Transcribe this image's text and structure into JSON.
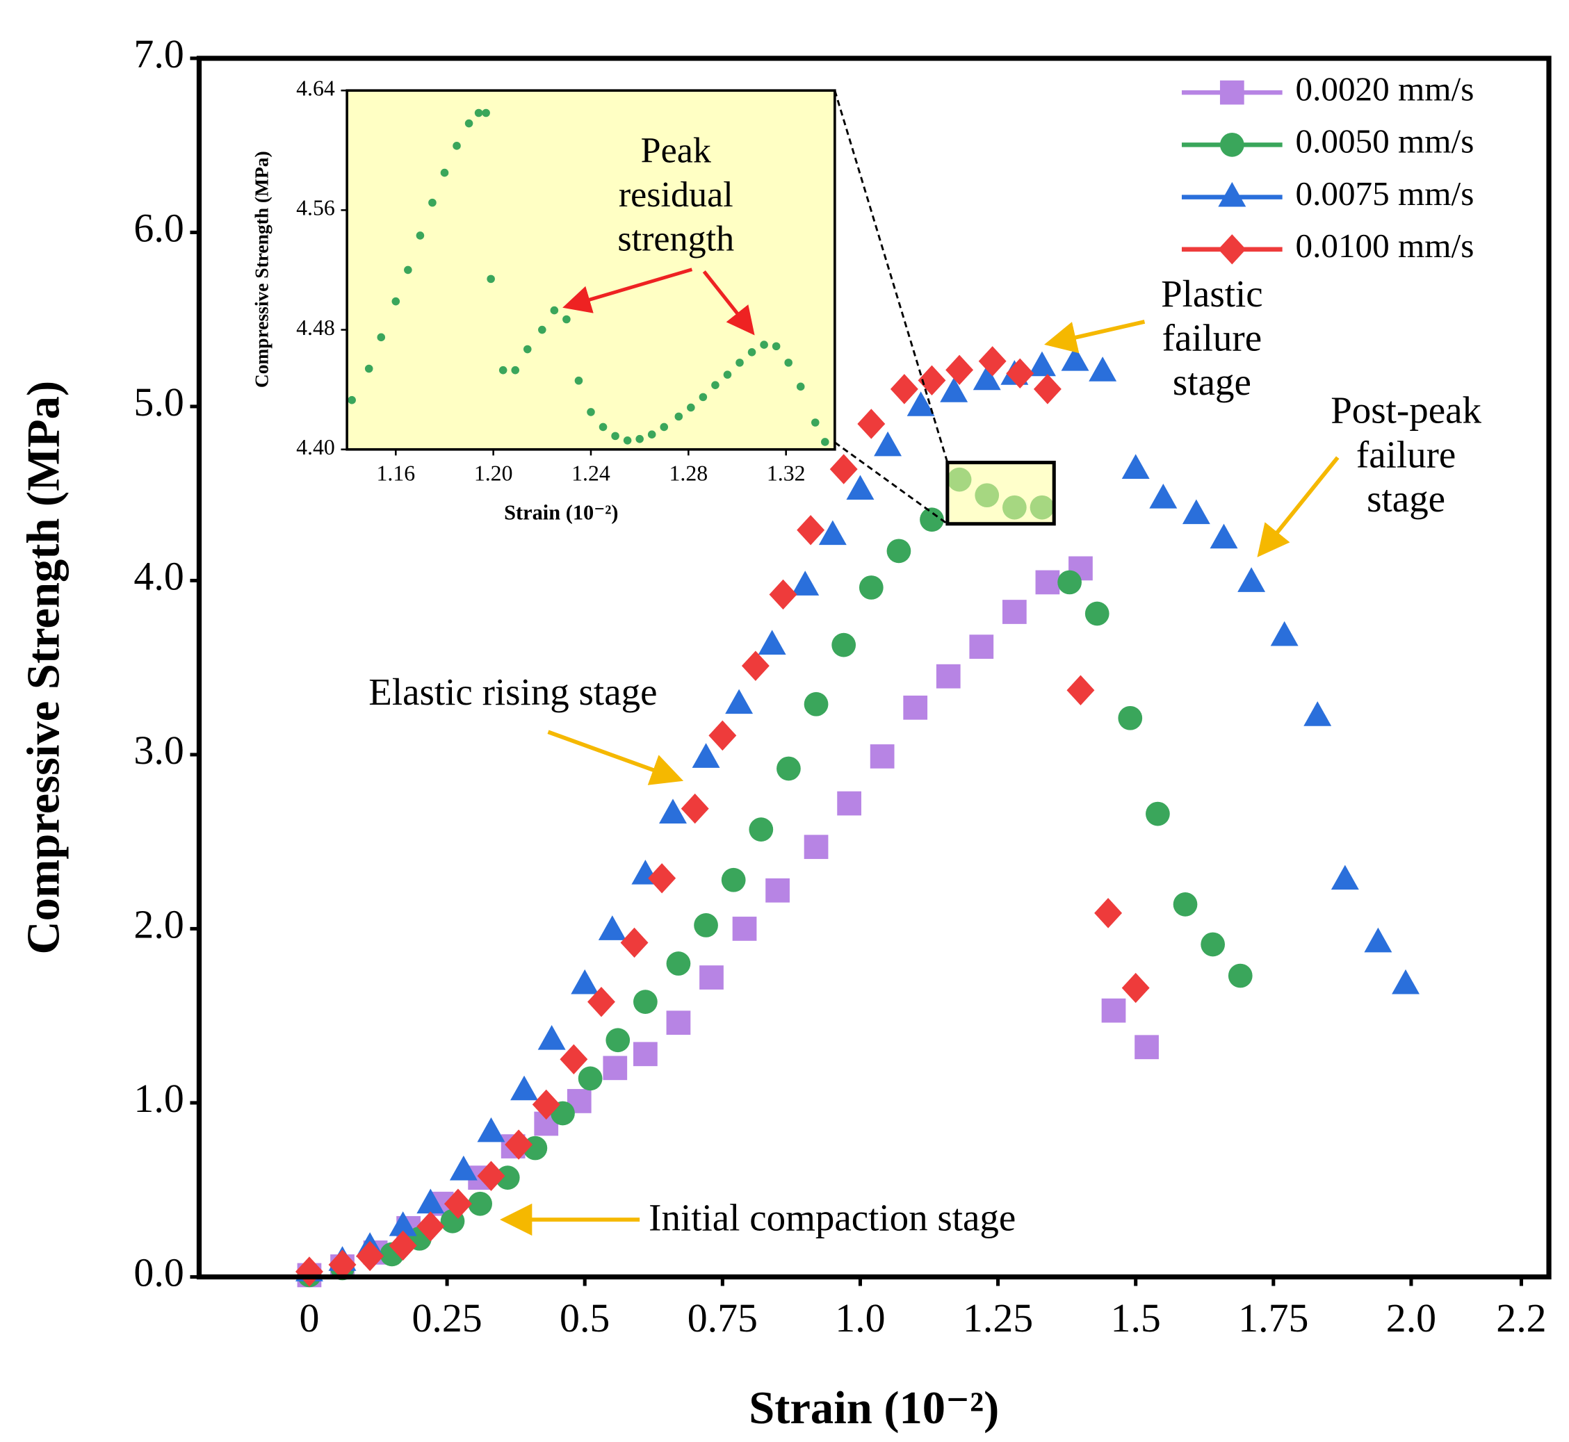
{
  "chart_data": [
    {
      "type": "line",
      "xlabel": "Strain (10⁻²)",
      "ylabel": "Compressive Strength (MPa)",
      "xlim": [
        -0.2,
        2.25
      ],
      "ylim": [
        0,
        7
      ],
      "xticks": [
        0,
        0.25,
        0.5,
        0.75,
        {
          "value": 1,
          "label": "1.0"
        },
        1.25,
        1.5,
        1.75,
        {
          "value": 2,
          "label": "2.0"
        },
        2.2
      ],
      "yticks": [
        {
          "value": 0,
          "label": "0.0"
        },
        {
          "value": 1,
          "label": "1.0"
        },
        {
          "value": 2,
          "label": "2.0"
        },
        {
          "value": 3,
          "label": "3.0"
        },
        {
          "value": 4,
          "label": "4.0"
        },
        {
          "value": 5,
          "label": "5.0"
        },
        {
          "value": 6,
          "label": "6.0"
        },
        {
          "value": 7,
          "label": "7.0"
        }
      ],
      "legend": "upper right",
      "series": [
        {
          "name": "0.0020 mm/s",
          "color": "#b784e4",
          "marker": "square",
          "x": [
            0,
            0.06,
            0.12,
            0.18,
            0.24,
            0.31,
            0.37,
            0.43,
            0.49,
            0.555,
            0.61,
            0.67,
            0.73,
            0.79,
            0.85,
            0.92,
            0.98,
            1.04,
            1.1,
            1.16,
            1.22,
            1.28,
            1.34,
            1.4,
            1.46,
            1.52
          ],
          "values": [
            0.01,
            0.06,
            0.14,
            0.28,
            0.42,
            0.57,
            0.75,
            0.88,
            1.01,
            1.2,
            1.28,
            1.46,
            1.72,
            2.0,
            2.22,
            2.47,
            2.72,
            2.99,
            3.27,
            3.45,
            3.62,
            3.82,
            3.99,
            4.07,
            1.53,
            1.32
          ]
        },
        {
          "name": "0.0050 mm/s",
          "color": "#3aa65b",
          "marker": "circle",
          "x": [
            0,
            0.06,
            0.15,
            0.2,
            0.26,
            0.31,
            0.36,
            0.41,
            0.46,
            0.51,
            0.56,
            0.61,
            0.67,
            0.72,
            0.77,
            0.82,
            0.87,
            0.92,
            0.97,
            1.02,
            1.07,
            1.13,
            1.18,
            1.23,
            1.28,
            1.33,
            1.38,
            1.43,
            1.49,
            1.54,
            1.59,
            1.64,
            1.69
          ],
          "values": [
            0.01,
            0.05,
            0.13,
            0.22,
            0.32,
            0.42,
            0.57,
            0.74,
            0.94,
            1.14,
            1.36,
            1.58,
            1.8,
            2.02,
            2.28,
            2.57,
            2.92,
            3.29,
            3.63,
            3.96,
            4.17,
            4.35,
            4.58,
            4.49,
            4.42,
            4.42,
            3.99,
            3.81,
            3.21,
            2.66,
            2.14,
            1.91,
            1.73
          ]
        },
        {
          "name": "0.0075 mm/s",
          "color": "#2a6fdb",
          "marker": "triangle",
          "x": [
            0,
            0.06,
            0.11,
            0.17,
            0.22,
            0.28,
            0.33,
            0.39,
            0.44,
            0.5,
            0.55,
            0.61,
            0.66,
            0.72,
            0.78,
            0.84,
            0.9,
            0.95,
            1.0,
            1.05,
            1.11,
            1.17,
            1.23,
            1.28,
            1.33,
            1.39,
            1.44,
            1.5,
            1.55,
            1.61,
            1.66,
            1.71,
            1.77,
            1.83,
            1.88,
            1.94,
            1.99
          ],
          "values": [
            0.03,
            0.09,
            0.17,
            0.29,
            0.42,
            0.61,
            0.83,
            1.07,
            1.36,
            1.68,
            1.99,
            2.31,
            2.66,
            2.98,
            3.29,
            3.63,
            3.97,
            4.26,
            4.52,
            4.77,
            5.0,
            5.08,
            5.15,
            5.18,
            5.23,
            5.26,
            5.2,
            4.64,
            4.47,
            4.38,
            4.24,
            3.99,
            3.68,
            3.22,
            2.28,
            1.92,
            1.68
          ]
        },
        {
          "name": "0.0100 mm/s",
          "color": "#ee3b3b",
          "marker": "diamond",
          "x": [
            0,
            0.06,
            0.11,
            0.17,
            0.22,
            0.27,
            0.33,
            0.38,
            0.43,
            0.48,
            0.53,
            0.59,
            0.64,
            0.7,
            0.75,
            0.81,
            0.86,
            0.91,
            0.97,
            1.02,
            1.08,
            1.13,
            1.18,
            1.24,
            1.29,
            1.34,
            1.4,
            1.45,
            1.5
          ],
          "values": [
            0.03,
            0.07,
            0.12,
            0.18,
            0.29,
            0.42,
            0.58,
            0.76,
            0.99,
            1.25,
            1.58,
            1.92,
            2.29,
            2.69,
            3.11,
            3.51,
            3.92,
            4.29,
            4.64,
            4.9,
            5.1,
            5.15,
            5.21,
            5.26,
            5.19,
            5.1,
            3.37,
            2.09,
            1.66
          ]
        }
      ],
      "annotations": [
        {
          "lines": [
            "Elastic rising stage"
          ]
        },
        {
          "lines": [
            "Initial compaction stage"
          ]
        },
        {
          "lines": [
            "Plastic",
            "failure",
            "stage"
          ]
        },
        {
          "lines": [
            "Post-peak",
            "failure",
            "stage"
          ]
        }
      ]
    },
    {
      "type": "line",
      "xlabel": "Strain (10⁻²)",
      "ylabel": "Compressive Strength (MPa)",
      "xlim": [
        1.14,
        1.34
      ],
      "ylim": [
        4.4,
        4.64
      ],
      "xticks": [
        1.16,
        {
          "value": 1.2,
          "label": "1.20"
        },
        1.24,
        1.28,
        1.32
      ],
      "yticks": [
        {
          "value": 4.4,
          "label": "4.40"
        },
        4.48,
        4.56,
        4.64
      ],
      "background": "#ffffc4",
      "series": [
        {
          "color": "#3aa65b",
          "marker": "circle",
          "x": [
            1.142,
            1.149,
            1.154,
            1.16,
            1.165,
            1.17,
            1.175,
            1.18,
            1.185,
            1.19,
            1.194,
            1.197,
            1.199,
            1.204,
            1.209,
            1.214,
            1.22,
            1.225,
            1.23,
            1.235,
            1.24,
            1.245,
            1.25,
            1.255,
            1.26,
            1.265,
            1.27,
            1.276,
            1.281,
            1.286,
            1.291,
            1.296,
            1.301,
            1.306,
            1.311,
            1.316,
            1.321,
            1.326,
            1.332,
            1.336
          ],
          "values": [
            4.433,
            4.454,
            4.475,
            4.499,
            4.52,
            4.543,
            4.565,
            4.585,
            4.603,
            4.618,
            4.625,
            4.625,
            4.514,
            4.453,
            4.453,
            4.467,
            4.48,
            4.493,
            4.487,
            4.446,
            4.425,
            4.415,
            4.409,
            4.406,
            4.407,
            4.41,
            4.415,
            4.422,
            4.428,
            4.435,
            4.443,
            4.45,
            4.458,
            4.465,
            4.47,
            4.469,
            4.458,
            4.442,
            4.418,
            4.405
          ]
        }
      ],
      "annotations": [
        {
          "lines": [
            "Peak",
            "residual",
            "strength"
          ]
        }
      ]
    }
  ]
}
